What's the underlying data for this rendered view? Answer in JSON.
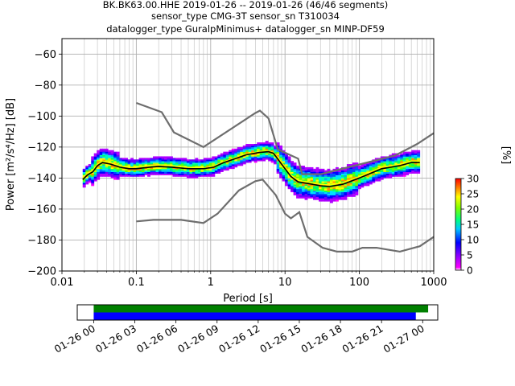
{
  "title_lines": [
    "BK.BK63.00.HHE   2019-01-26 -- 2019-01-26  (46/46 segments)",
    "sensor_type CMG-3T sensor_sn T310034",
    "datalogger_type GuralpMinimus+ datalogger_sn MINP-DF59"
  ],
  "chart_data": {
    "type": "ppsd",
    "xlabel": "Period [s]",
    "ylabel": "Power [m²/s⁴/Hz] [dB]",
    "xscale": "log",
    "xlim": [
      0.01,
      1000
    ],
    "ylim": [
      -200,
      -50
    ],
    "xticks": [
      0.01,
      0.1,
      1,
      10,
      100,
      1000
    ],
    "xtick_labels": [
      "0.01",
      "0.1",
      "1",
      "10",
      "100",
      "1000"
    ],
    "yticks": [
      -200,
      -180,
      -160,
      -140,
      -120,
      -100,
      -80,
      -60
    ],
    "ytick_labels": [
      "−200",
      "−180",
      "−160",
      "−140",
      "−120",
      "−100",
      "−80",
      "−60"
    ],
    "grid": true,
    "colorbar": {
      "label": "[%]",
      "range": [
        0,
        30
      ],
      "ticks": [
        0,
        5,
        10,
        15,
        20,
        25,
        30
      ],
      "tick_labels": [
        "0",
        "5",
        "10",
        "15",
        "20",
        "25",
        "30"
      ]
    },
    "noise_models": [
      {
        "name": "NHNM",
        "color": "#6e6e6e",
        "points": [
          [
            0.1,
            -91.5
          ],
          [
            0.22,
            -97.5
          ],
          [
            0.32,
            -110.5
          ],
          [
            0.8,
            -120
          ],
          [
            4,
            -98
          ],
          [
            4.6,
            -96.5
          ],
          [
            6,
            -101.5
          ],
          [
            8,
            -121.5
          ],
          [
            15,
            -127.5
          ],
          [
            17,
            -137.5
          ],
          [
            30,
            -137.5
          ],
          [
            300,
            -125.5
          ],
          [
            600,
            -118
          ],
          [
            1000,
            -111
          ]
        ]
      },
      {
        "name": "NLNM",
        "color": "#6e6e6e",
        "points": [
          [
            0.1,
            -168
          ],
          [
            0.17,
            -167
          ],
          [
            0.4,
            -167
          ],
          [
            0.8,
            -169
          ],
          [
            1.24,
            -163
          ],
          [
            2.4,
            -148
          ],
          [
            4,
            -142
          ],
          [
            5,
            -141
          ],
          [
            7.5,
            -151
          ],
          [
            10,
            -163
          ],
          [
            12,
            -166
          ],
          [
            15.6,
            -162
          ],
          [
            20,
            -178
          ],
          [
            32,
            -185
          ],
          [
            50,
            -187.5
          ],
          [
            80,
            -187.5
          ],
          [
            110,
            -185
          ],
          [
            170,
            -185
          ],
          [
            350,
            -187.5
          ],
          [
            650,
            -184
          ],
          [
            1000,
            -178
          ]
        ]
      }
    ],
    "median": {
      "color": "#000000",
      "points": [
        [
          0.019,
          -141
        ],
        [
          0.022,
          -138
        ],
        [
          0.026,
          -136
        ],
        [
          0.03,
          -132
        ],
        [
          0.035,
          -130
        ],
        [
          0.045,
          -131
        ],
        [
          0.06,
          -133
        ],
        [
          0.08,
          -134
        ],
        [
          0.1,
          -134
        ],
        [
          0.15,
          -133
        ],
        [
          0.2,
          -132.5
        ],
        [
          0.3,
          -133
        ],
        [
          0.5,
          -134
        ],
        [
          0.8,
          -134
        ],
        [
          1.1,
          -133
        ],
        [
          1.5,
          -130
        ],
        [
          2,
          -128
        ],
        [
          3,
          -125
        ],
        [
          4.5,
          -123.5
        ],
        [
          6,
          -123
        ],
        [
          7,
          -124
        ],
        [
          9,
          -131
        ],
        [
          12,
          -139
        ],
        [
          15,
          -142.5
        ],
        [
          20,
          -143.5
        ],
        [
          30,
          -145
        ],
        [
          40,
          -145.5
        ],
        [
          60,
          -144
        ],
        [
          100,
          -140
        ],
        [
          200,
          -134
        ],
        [
          350,
          -132
        ],
        [
          500,
          -130
        ],
        [
          650,
          -130
        ]
      ]
    },
    "mode": {
      "color": "#ffff00",
      "points": [
        [
          0.019,
          -140
        ],
        [
          0.022,
          -137
        ],
        [
          0.026,
          -135
        ],
        [
          0.03,
          -131
        ],
        [
          0.035,
          -129
        ],
        [
          0.045,
          -130
        ],
        [
          0.06,
          -132
        ],
        [
          0.08,
          -133
        ],
        [
          0.1,
          -133
        ],
        [
          0.15,
          -132
        ],
        [
          0.2,
          -131.5
        ],
        [
          0.3,
          -132
        ],
        [
          0.5,
          -133
        ],
        [
          0.8,
          -133.5
        ],
        [
          1.1,
          -132.5
        ],
        [
          1.5,
          -129.5
        ],
        [
          2,
          -127.5
        ],
        [
          3,
          -124.5
        ],
        [
          4.5,
          -123
        ],
        [
          6,
          -122.5
        ],
        [
          7,
          -123.5
        ],
        [
          9,
          -130
        ],
        [
          12,
          -138
        ],
        [
          15,
          -141.5
        ],
        [
          20,
          -142.5
        ],
        [
          30,
          -144
        ],
        [
          40,
          -144.5
        ],
        [
          60,
          -143
        ],
        [
          100,
          -139
        ],
        [
          200,
          -133
        ],
        [
          350,
          -131
        ],
        [
          500,
          -129
        ],
        [
          650,
          -129
        ]
      ]
    },
    "timeline": {
      "tick_labels": [
        "01-26 00",
        "01-26 03",
        "01-26 06",
        "01-26 09",
        "01-26 12",
        "01-26 15",
        "01-26 18",
        "01-26 21",
        "01-27 00"
      ],
      "range_hours": [
        -1.2,
        25.1
      ],
      "bars": [
        {
          "name": "data",
          "color": "#008000",
          "start_hours": 0,
          "end_hours": 24.4
        },
        {
          "name": "used",
          "color": "#0000ff",
          "start_hours": 0,
          "end_hours": 23.5
        }
      ]
    }
  }
}
